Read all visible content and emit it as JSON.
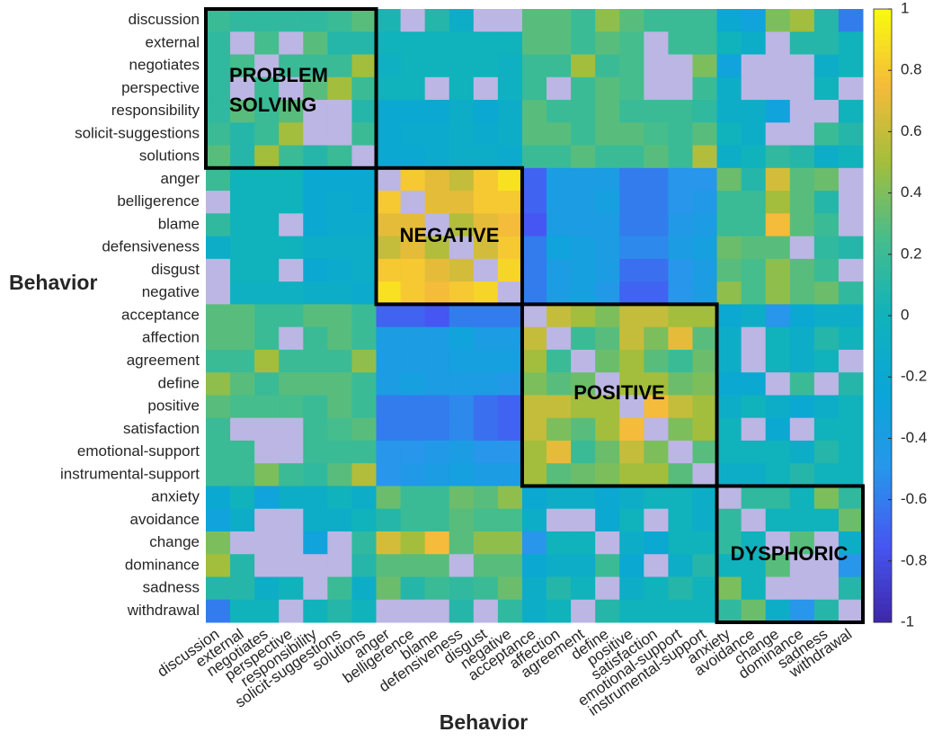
{
  "chart_data": {
    "type": "heatmap",
    "xlabel": "Behavior",
    "ylabel": "Behavior",
    "categories": [
      "discussion",
      "external",
      "negotiates",
      "perspective",
      "responsibility",
      "solicit-suggestions",
      "solutions",
      "anger",
      "belligerence",
      "blame",
      "defensiveness",
      "disgust",
      "negative",
      "acceptance",
      "affection",
      "agreement",
      "define",
      "positive",
      "satisfaction",
      "emotional-support",
      "instrumental-support",
      "anxiety",
      "avoidance",
      "change",
      "dominance",
      "sadness",
      "withdrawal"
    ],
    "values": [
      [
        0.2,
        0.15,
        0.15,
        0.15,
        0.15,
        0.2,
        0.3,
        0.05,
        null,
        0.1,
        -0.1,
        null,
        null,
        0.3,
        0.3,
        0.2,
        0.45,
        0.3,
        0.2,
        0.2,
        0.2,
        -0.2,
        -0.3,
        0.4,
        0.5,
        0.1,
        -0.6
      ],
      [
        0.15,
        null,
        0.25,
        null,
        0.3,
        0.1,
        0.1,
        0,
        0,
        0,
        0,
        0,
        0,
        0.3,
        0.3,
        0.2,
        0.3,
        0.25,
        null,
        0.2,
        0.2,
        0,
        -0.1,
        null,
        0.1,
        0.1,
        0
      ],
      [
        0.15,
        0.25,
        null,
        0.2,
        0.2,
        0.2,
        0.5,
        -0.05,
        0,
        0,
        0,
        0,
        -0.05,
        0.2,
        0.2,
        0.5,
        0.2,
        0.25,
        null,
        null,
        0.4,
        -0.3,
        null,
        null,
        null,
        -0.1,
        0
      ],
      [
        0.15,
        null,
        0.2,
        null,
        0.3,
        0.5,
        0.2,
        0,
        0,
        null,
        0,
        null,
        -0.05,
        0.2,
        null,
        0.2,
        0.3,
        0.25,
        null,
        null,
        0.2,
        -0.1,
        null,
        null,
        null,
        0,
        null
      ],
      [
        0.15,
        0.3,
        0.2,
        0.3,
        null,
        null,
        0.1,
        -0.2,
        -0.2,
        -0.2,
        -0.1,
        -0.2,
        -0.1,
        0.3,
        0.2,
        0.2,
        0.3,
        0.2,
        0.2,
        0.2,
        0.15,
        -0.1,
        -0.1,
        -0.3,
        null,
        null,
        0
      ],
      [
        0.2,
        0.1,
        0.2,
        0.5,
        null,
        null,
        0.2,
        -0.2,
        -0.15,
        -0.15,
        -0.1,
        -0.15,
        -0.1,
        0.3,
        0.3,
        0.2,
        0.3,
        0.3,
        0.25,
        0.2,
        0.3,
        0,
        -0.1,
        null,
        null,
        0.2,
        0.1
      ],
      [
        0.3,
        0.1,
        0.5,
        0.2,
        0.1,
        0.2,
        null,
        -0.2,
        -0.2,
        -0.15,
        -0.1,
        -0.1,
        -0.15,
        0.2,
        0.2,
        0.3,
        0.2,
        0.2,
        0.3,
        0.2,
        0.55,
        -0.1,
        0,
        0.15,
        0.1,
        -0.1,
        0
      ],
      [
        0.2,
        0,
        0,
        0,
        -0.2,
        -0.2,
        -0.2,
        null,
        0.8,
        0.7,
        0.6,
        0.8,
        0.9,
        -0.7,
        -0.4,
        -0.4,
        -0.4,
        -0.6,
        -0.6,
        -0.5,
        -0.5,
        0.35,
        0.1,
        0.65,
        0.3,
        0.35,
        null
      ],
      [
        null,
        0,
        0,
        0,
        -0.2,
        -0.15,
        -0.2,
        0.8,
        null,
        0.7,
        0.7,
        0.8,
        0.8,
        -0.7,
        -0.4,
        -0.4,
        -0.35,
        -0.6,
        -0.6,
        -0.5,
        -0.45,
        0.2,
        0.2,
        0.5,
        0.3,
        0.1,
        null
      ],
      [
        0.15,
        0,
        0,
        null,
        -0.2,
        -0.15,
        -0.15,
        0.7,
        0.7,
        null,
        0.55,
        0.7,
        0.75,
        -0.75,
        -0.4,
        -0.4,
        -0.4,
        -0.6,
        -0.6,
        -0.45,
        -0.4,
        0.2,
        0.2,
        0.75,
        0.3,
        0.2,
        null
      ],
      [
        -0.1,
        0,
        0,
        0,
        -0.1,
        -0.1,
        -0.1,
        0.6,
        0.7,
        0.55,
        null,
        0.65,
        0.8,
        -0.6,
        -0.3,
        -0.35,
        -0.4,
        -0.55,
        -0.55,
        -0.4,
        -0.35,
        0.35,
        0.3,
        0.3,
        null,
        0.15,
        0.1
      ],
      [
        null,
        0,
        0,
        null,
        -0.2,
        -0.15,
        -0.1,
        0.8,
        0.8,
        0.7,
        0.65,
        null,
        0.85,
        -0.6,
        -0.4,
        -0.35,
        -0.4,
        -0.65,
        -0.65,
        -0.5,
        -0.4,
        0.3,
        0.25,
        0.45,
        0.3,
        0.2,
        null
      ],
      [
        null,
        -0.05,
        -0.05,
        -0.05,
        -0.1,
        -0.1,
        -0.15,
        0.9,
        0.8,
        0.75,
        0.8,
        0.85,
        null,
        -0.6,
        -0.4,
        -0.35,
        -0.45,
        -0.7,
        -0.7,
        -0.5,
        -0.4,
        0.45,
        0.25,
        0.45,
        0.3,
        0.35,
        0.15
      ],
      [
        0.3,
        0.3,
        0.2,
        0.2,
        0.3,
        0.3,
        0.2,
        -0.7,
        -0.7,
        -0.75,
        -0.6,
        -0.6,
        -0.6,
        null,
        0.6,
        0.5,
        0.4,
        0.6,
        0.6,
        0.5,
        0.5,
        -0.2,
        -0.1,
        -0.5,
        -0.2,
        -0.1,
        -0.1
      ],
      [
        0.3,
        0.3,
        0.2,
        null,
        0.2,
        0.3,
        0.2,
        -0.4,
        -0.4,
        -0.4,
        -0.3,
        -0.4,
        -0.4,
        0.6,
        null,
        0.2,
        0.3,
        0.6,
        0.4,
        0.7,
        0.3,
        -0.1,
        null,
        0,
        -0.1,
        0.1,
        0
      ],
      [
        0.2,
        0.2,
        0.5,
        0.2,
        0.2,
        0.2,
        0.45,
        -0.4,
        -0.4,
        -0.4,
        -0.35,
        -0.35,
        -0.35,
        0.5,
        0.2,
        null,
        0.35,
        0.5,
        0.3,
        0.2,
        0.35,
        -0.1,
        null,
        0,
        -0.1,
        0,
        null
      ],
      [
        0.45,
        0.3,
        0.2,
        0.3,
        0.3,
        0.3,
        0.2,
        -0.4,
        -0.35,
        -0.4,
        -0.4,
        -0.4,
        -0.45,
        0.4,
        0.3,
        0.35,
        null,
        0.5,
        0.5,
        0.35,
        0.4,
        -0.2,
        -0.2,
        null,
        0.2,
        null,
        0.1
      ],
      [
        0.3,
        0.25,
        0.25,
        0.25,
        0.2,
        0.3,
        0.2,
        -0.6,
        -0.6,
        -0.6,
        -0.55,
        -0.65,
        -0.7,
        0.6,
        0.6,
        0.5,
        0.5,
        null,
        0.75,
        0.6,
        0.5,
        -0.1,
        0,
        -0.1,
        -0.2,
        -0.1,
        0
      ],
      [
        0.2,
        null,
        null,
        null,
        0.2,
        0.25,
        0.3,
        -0.6,
        -0.6,
        -0.6,
        -0.55,
        -0.65,
        -0.7,
        0.6,
        0.4,
        0.3,
        0.5,
        0.75,
        null,
        0.4,
        0.5,
        0,
        null,
        -0.2,
        null,
        0,
        0
      ],
      [
        0.2,
        0.2,
        null,
        null,
        0.2,
        0.2,
        0.2,
        -0.5,
        -0.5,
        -0.45,
        -0.4,
        -0.5,
        -0.5,
        0.5,
        0.7,
        0.2,
        0.35,
        0.6,
        0.4,
        null,
        0.3,
        0,
        0,
        0,
        -0.1,
        0.1,
        0
      ],
      [
        0.2,
        0.2,
        0.4,
        0.2,
        0.15,
        0.3,
        0.55,
        -0.5,
        -0.45,
        -0.4,
        -0.35,
        -0.4,
        -0.4,
        0.5,
        0.3,
        0.35,
        0.4,
        0.5,
        0.5,
        0.3,
        null,
        -0.1,
        -0.1,
        0,
        0.1,
        0,
        0
      ],
      [
        -0.2,
        0,
        -0.3,
        -0.1,
        -0.1,
        0,
        -0.1,
        0.35,
        0.2,
        0.2,
        0.35,
        0.3,
        0.45,
        -0.2,
        -0.1,
        -0.1,
        -0.2,
        -0.1,
        0,
        0,
        -0.1,
        null,
        0.15,
        0.15,
        0,
        0.4,
        0.15
      ],
      [
        -0.3,
        -0.1,
        null,
        null,
        -0.1,
        -0.1,
        0,
        0.1,
        0.2,
        0.2,
        0.3,
        0.25,
        0.25,
        -0.1,
        null,
        null,
        -0.2,
        0,
        null,
        0,
        -0.1,
        0.15,
        null,
        0,
        0,
        0,
        0.35
      ],
      [
        0.4,
        null,
        null,
        null,
        -0.3,
        null,
        0.15,
        0.65,
        0.5,
        0.75,
        0.3,
        0.45,
        0.45,
        -0.5,
        0,
        0,
        null,
        -0.1,
        -0.2,
        0,
        0,
        0.15,
        0,
        null,
        0.3,
        null,
        -0.1
      ],
      [
        0.5,
        0.1,
        null,
        null,
        null,
        null,
        0.1,
        0.3,
        0.3,
        0.3,
        null,
        0.3,
        0.3,
        -0.2,
        -0.1,
        -0.1,
        0.2,
        -0.2,
        null,
        -0.1,
        0.1,
        0,
        0,
        0.3,
        null,
        null,
        -0.5
      ],
      [
        0.1,
        0.1,
        -0.1,
        0,
        null,
        0.2,
        -0.1,
        0.35,
        0.1,
        0.2,
        0.15,
        0.2,
        0.35,
        -0.1,
        0.1,
        0,
        null,
        -0.1,
        0,
        0.1,
        0,
        0.4,
        0,
        null,
        null,
        null,
        0.1
      ],
      [
        -0.6,
        0,
        0,
        null,
        0,
        0.1,
        0,
        null,
        null,
        null,
        0.1,
        null,
        0.15,
        -0.1,
        0,
        null,
        0.1,
        0,
        0,
        0,
        0,
        0.15,
        0.35,
        -0.1,
        -0.5,
        0.1,
        null
      ]
    ],
    "clim": [
      -1,
      1
    ],
    "cticks": [
      -1,
      -0.8,
      -0.6,
      -0.4,
      -0.2,
      0,
      0.2,
      0.4,
      0.6,
      0.8,
      1
    ],
    "colormap": [
      "#3e26a8",
      "#4656f2",
      "#2796eb",
      "#0aa6d8",
      "#10b2bc",
      "#45bd8c",
      "#a3be3c",
      "#f5bb3a",
      "#f9fb0e"
    ],
    "nan_color": "#bbb6e3",
    "annotations": [
      {
        "lines": [
          "PROBLEM",
          "SOLVING"
        ]
      },
      {
        "lines": [
          "NEGATIVE"
        ]
      },
      {
        "lines": [
          "POSITIVE"
        ]
      },
      {
        "lines": [
          "DYSPHORIC"
        ]
      }
    ]
  }
}
